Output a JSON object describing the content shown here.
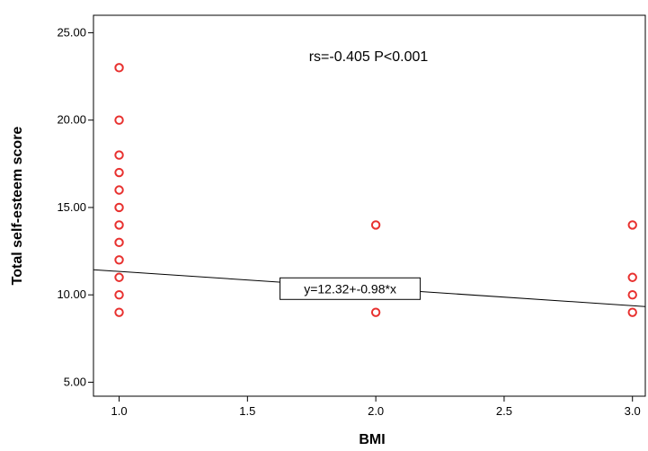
{
  "chart_data": {
    "type": "scatter",
    "title": "",
    "xlabel": "BMI",
    "ylabel": "Total self-esteem score",
    "xlim": [
      0.9,
      3.05
    ],
    "ylim": [
      4.2,
      26
    ],
    "x_ticks": [
      1.0,
      1.5,
      2.0,
      2.5,
      3.0
    ],
    "x_tick_labels": [
      "1.0",
      "1.5",
      "2.0",
      "2.5",
      "3.0"
    ],
    "y_ticks": [
      5,
      10,
      15,
      20,
      25
    ],
    "y_tick_labels": [
      "5.00",
      "10.00",
      "15.00",
      "20.00",
      "25.00"
    ],
    "grid": false,
    "marker_color": "#e8312f",
    "points": [
      {
        "x": 1.0,
        "y": 23
      },
      {
        "x": 1.0,
        "y": 20
      },
      {
        "x": 1.0,
        "y": 18
      },
      {
        "x": 1.0,
        "y": 17
      },
      {
        "x": 1.0,
        "y": 16
      },
      {
        "x": 1.0,
        "y": 15
      },
      {
        "x": 1.0,
        "y": 14
      },
      {
        "x": 1.0,
        "y": 13
      },
      {
        "x": 1.0,
        "y": 12
      },
      {
        "x": 1.0,
        "y": 11
      },
      {
        "x": 1.0,
        "y": 10
      },
      {
        "x": 1.0,
        "y": 9
      },
      {
        "x": 2.0,
        "y": 14
      },
      {
        "x": 2.0,
        "y": 9
      },
      {
        "x": 3.0,
        "y": 14
      },
      {
        "x": 3.0,
        "y": 11
      },
      {
        "x": 3.0,
        "y": 10
      },
      {
        "x": 3.0,
        "y": 9
      }
    ],
    "fit_line": {
      "intercept": 12.32,
      "slope": -0.98,
      "label": "y=12.32+-0.98*x"
    },
    "annotation": "rs=-0.405 P<0.001"
  }
}
